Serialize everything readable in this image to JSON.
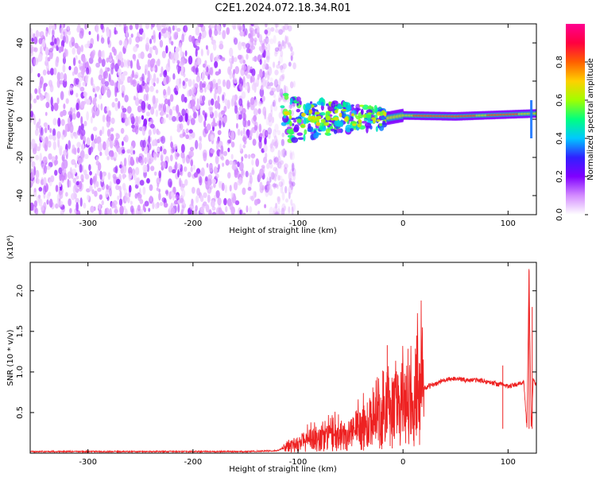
{
  "title": "C2E1.2024.072.18.34.R01",
  "chart_data": [
    {
      "type": "heatmap",
      "xlabel": "Height of straight line (km)",
      "ylabel": "Frequency (Hz)",
      "xlim": [
        -355,
        127
      ],
      "ylim": [
        -50,
        50
      ],
      "xticks": [
        -300,
        -200,
        -100,
        0,
        100
      ],
      "yticks": [
        -40,
        -20,
        0,
        20,
        40
      ],
      "colorbar": {
        "label": "Normalized spectral amplitude",
        "range": [
          0,
          1
        ],
        "ticks": [
          0.0,
          0.2,
          0.4,
          0.6,
          0.8
        ],
        "colors": [
          "#ffffff",
          "#d48cff",
          "#8000ff",
          "#3020ff",
          "#00c8ff",
          "#00ff80",
          "#a0ff00",
          "#ffd000",
          "#ff6000",
          "#ff0040",
          "#ff0090"
        ]
      },
      "regions": [
        {
          "x": [
            -355,
            -115
          ],
          "y": [
            -50,
            50
          ],
          "amplitude": 0.15,
          "desc": "speckle noise"
        },
        {
          "x": [
            -115,
            -15
          ],
          "y": [
            -12,
            12
          ],
          "amplitude": 0.45
        },
        {
          "x": [
            -15,
            0
          ],
          "y": [
            -4,
            4
          ],
          "amplitude": 0.75
        },
        {
          "x": [
            0,
            125
          ],
          "y": [
            0,
            4
          ],
          "amplitude": 0.85
        }
      ],
      "band_center_hz": [
        {
          "x": -110,
          "y": 0
        },
        {
          "x": -60,
          "y": 1
        },
        {
          "x": -20,
          "y": 0
        },
        {
          "x": 0,
          "y": 2
        },
        {
          "x": 50,
          "y": 1.5
        },
        {
          "x": 100,
          "y": 2.5
        },
        {
          "x": 125,
          "y": 3
        }
      ]
    },
    {
      "type": "line",
      "xlabel": "Height of straight line (km)",
      "ylabel": "SNR (10 * v/v)",
      "multiplier": "(x10⁴)",
      "xlim": [
        -355,
        127
      ],
      "ylim": [
        0,
        2.35
      ],
      "xticks": [
        -300,
        -200,
        -100,
        0,
        100
      ],
      "yticks": [
        0.5,
        1.0,
        1.5,
        2.0
      ],
      "ytick_labels": [
        "0.5",
        "1.0",
        "1.5",
        "2.0"
      ],
      "color": "#ee2222",
      "series": [
        {
          "x": [
            -355,
            -300,
            -250,
            -200,
            -150,
            -120,
            -110,
            -100,
            -90,
            -80,
            -70,
            -60,
            -50,
            -40,
            -30,
            -20,
            -15,
            -10,
            -5,
            0,
            5,
            10,
            15,
            20,
            30,
            40,
            50,
            60,
            70,
            80,
            90,
            95,
            100,
            110,
            115,
            118,
            120,
            122,
            124,
            126
          ],
          "y": [
            0.02,
            0.02,
            0.02,
            0.02,
            0.02,
            0.03,
            0.08,
            0.12,
            0.15,
            0.18,
            0.2,
            0.22,
            0.25,
            0.3,
            0.35,
            0.45,
            0.6,
            0.5,
            0.55,
            0.6,
            0.65,
            0.7,
            0.75,
            0.8,
            0.85,
            0.9,
            0.92,
            0.9,
            0.9,
            0.88,
            0.85,
            0.85,
            0.82,
            0.85,
            0.88,
            0.3,
            2.25,
            0.3,
            0.9,
            0.85
          ]
        }
      ],
      "spikes": [
        {
          "x": -15,
          "y": 1.33
        },
        {
          "x": 95,
          "y": 1.08
        },
        {
          "x": 120,
          "y": 2.25
        },
        {
          "x": 123,
          "y": 1.8
        }
      ]
    }
  ]
}
